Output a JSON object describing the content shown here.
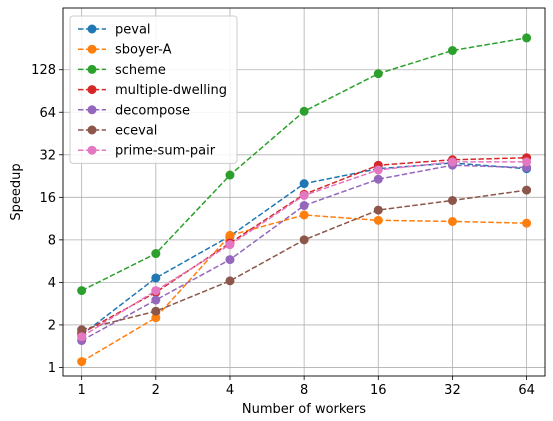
{
  "chart_data": {
    "type": "line",
    "xlabel": "Number of workers",
    "ylabel": "Speedup",
    "x": [
      1,
      2,
      4,
      8,
      16,
      32,
      64
    ],
    "x_ticks": [
      "1",
      "2",
      "4",
      "8",
      "16",
      "32",
      "64"
    ],
    "y_ticks": [
      1,
      2,
      4,
      8,
      16,
      32,
      64,
      128
    ],
    "y_tick_labels": [
      "1",
      "2",
      "4",
      "8",
      "16",
      "32",
      "64",
      "128"
    ],
    "x_scale": "log2",
    "y_scale": "log2",
    "xlim": [
      0.84,
      76
    ],
    "ylim": [
      0.87,
      350
    ],
    "grid": true,
    "legend_position": "top-left",
    "series": [
      {
        "name": "peval",
        "color": "#1f77b4",
        "values": [
          1.7,
          4.3,
          8.5,
          20,
          25.5,
          28,
          25.5
        ]
      },
      {
        "name": "sboyer-A",
        "color": "#ff7f0e",
        "values": [
          1.1,
          2.25,
          8.6,
          12,
          11,
          10.8,
          10.5
        ]
      },
      {
        "name": "scheme",
        "color": "#2ca02c",
        "values": [
          3.5,
          6.4,
          23,
          65,
          120,
          175,
          215
        ]
      },
      {
        "name": "multiple-dwelling",
        "color": "#d62728",
        "values": [
          1.75,
          3.4,
          7.6,
          16.8,
          27,
          29.5,
          30.5
        ]
      },
      {
        "name": "decompose",
        "color": "#9467bd",
        "values": [
          1.55,
          3.0,
          5.8,
          14,
          21.5,
          27,
          26
        ]
      },
      {
        "name": "eceval",
        "color": "#8c564b",
        "values": [
          1.85,
          2.5,
          4.1,
          8.0,
          13,
          15.2,
          18
        ]
      },
      {
        "name": "prime-sum-pair",
        "color": "#e377c2",
        "values": [
          1.65,
          3.5,
          7.4,
          16.5,
          25,
          28.5,
          28.5
        ]
      }
    ]
  }
}
